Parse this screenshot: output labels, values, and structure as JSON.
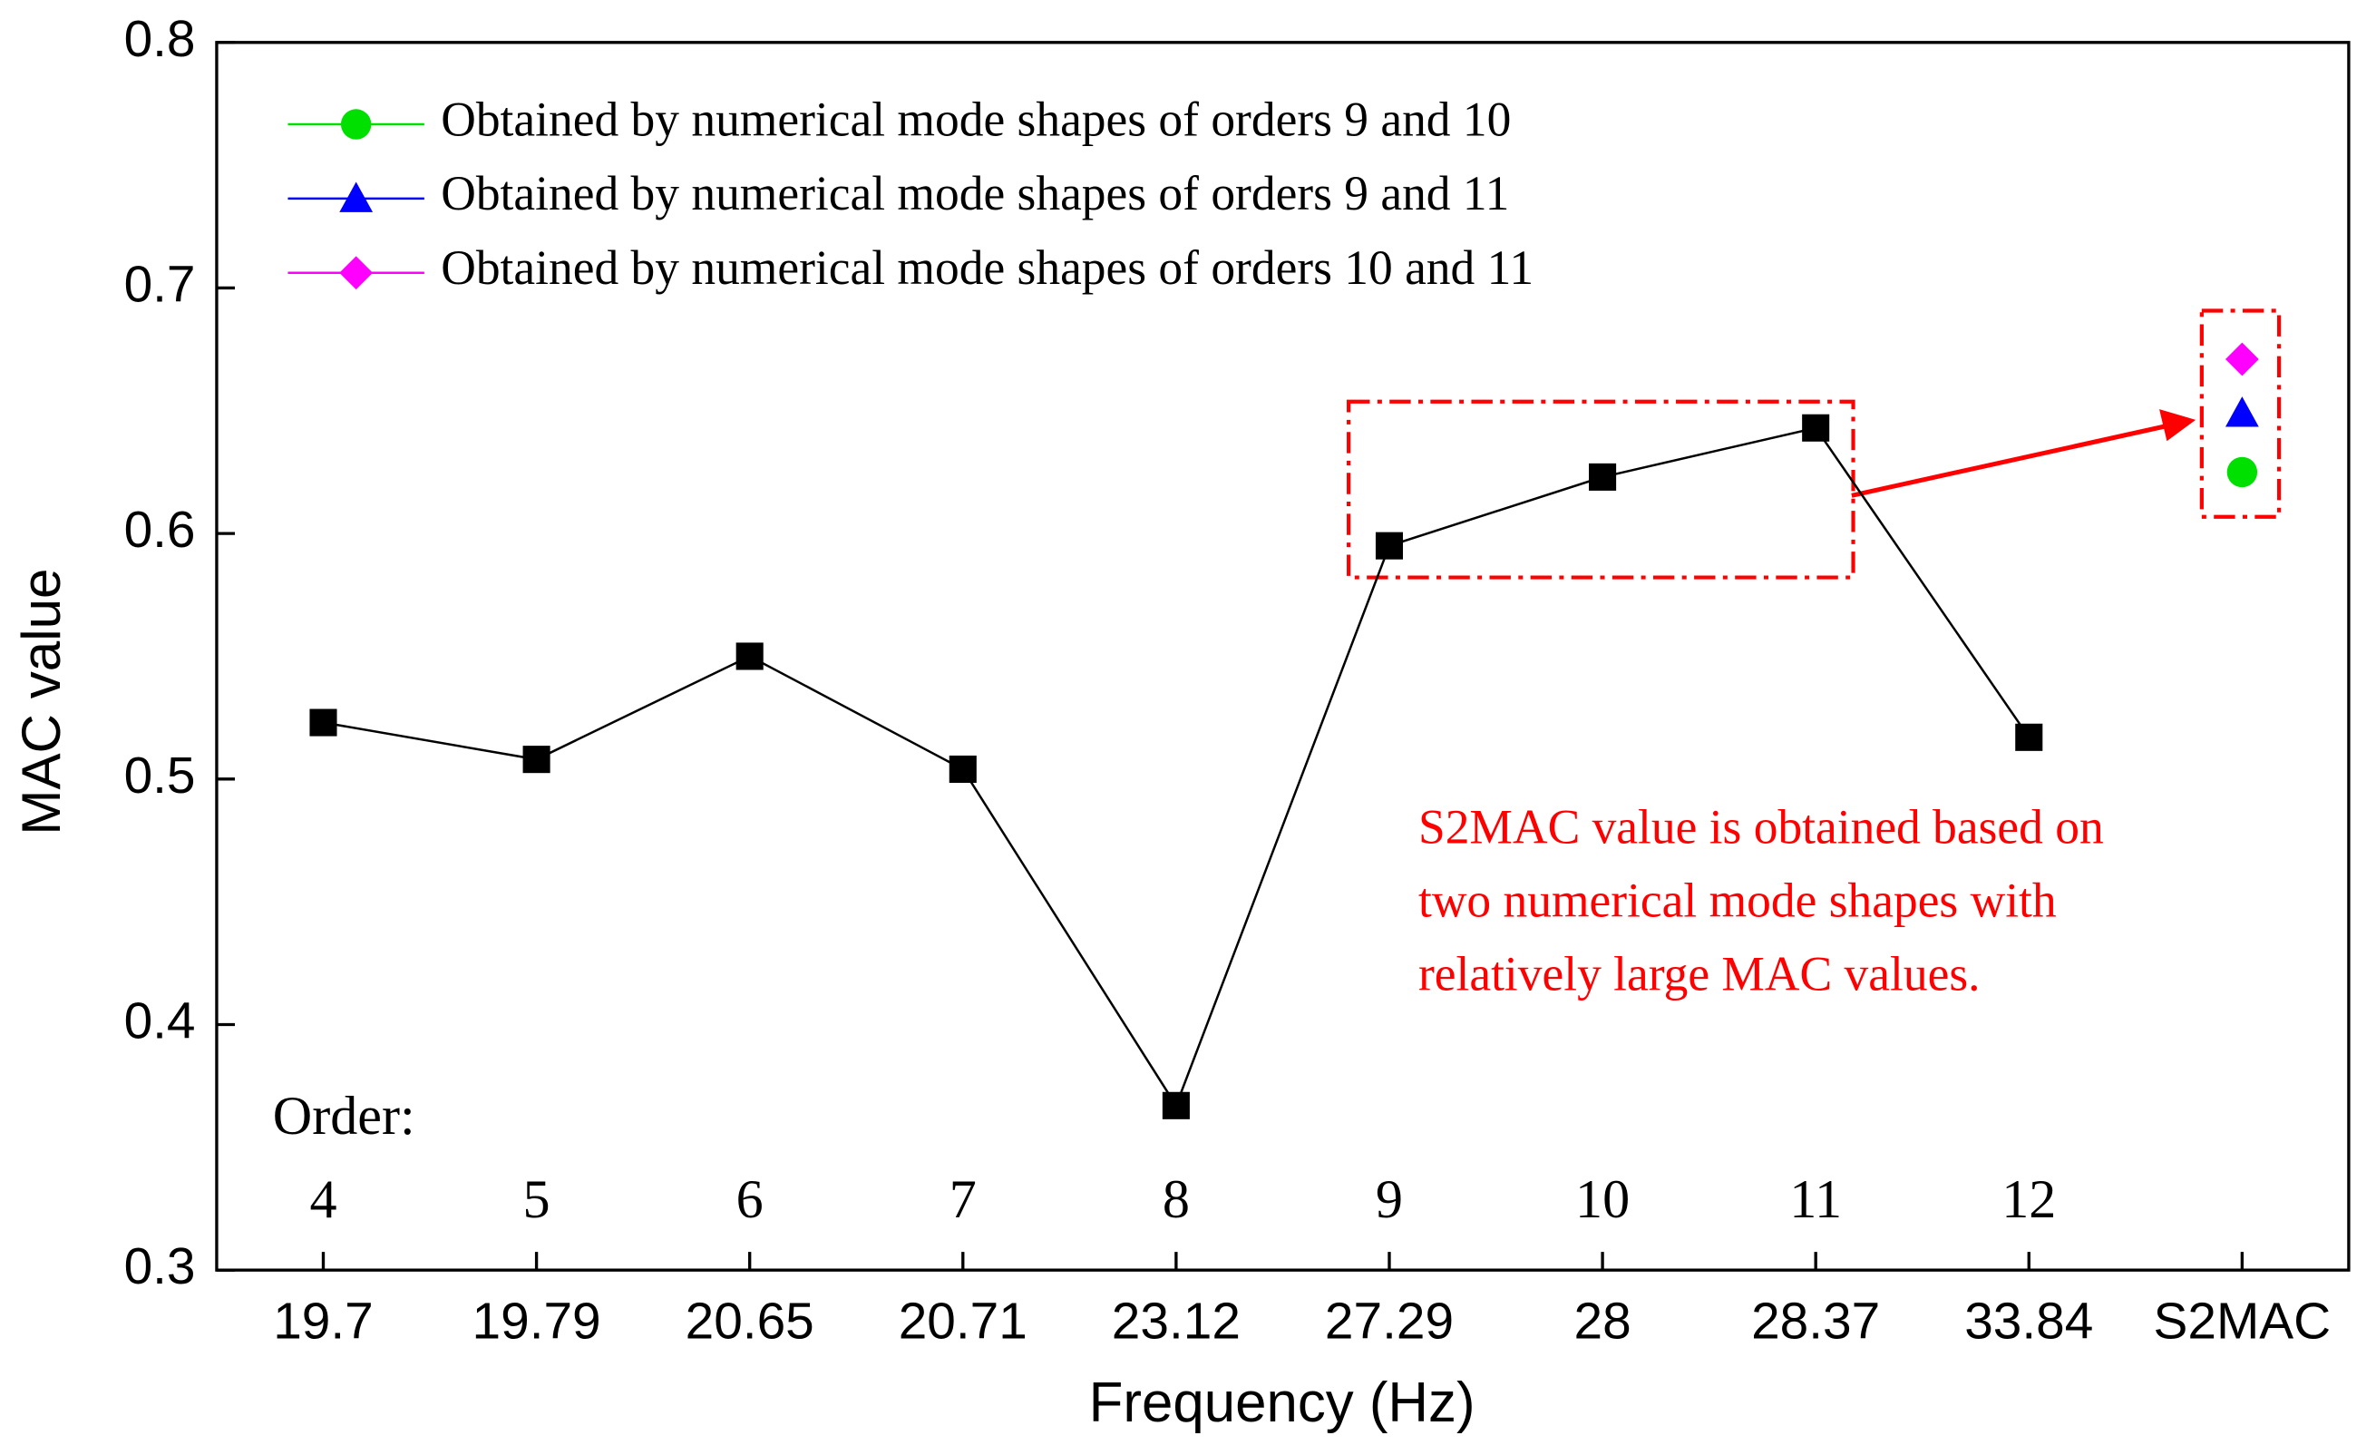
{
  "chart_data": {
    "type": "line",
    "x_label": "Frequency (Hz)",
    "y_label": "MAC value",
    "categories": [
      "19.7",
      "19.79",
      "20.65",
      "20.71",
      "23.12",
      "27.29",
      "28",
      "28.37",
      "33.84",
      "S2MAC"
    ],
    "order_label": "Order:",
    "orders": [
      4,
      5,
      6,
      7,
      8,
      9,
      10,
      11,
      12,
      null
    ],
    "ylim": [
      0.3,
      0.8
    ],
    "yticks": [
      0.3,
      0.4,
      0.5,
      0.6,
      0.7,
      0.8
    ],
    "series": [
      {
        "color": "#000000",
        "marker": "square",
        "values": [
          0.523,
          0.508,
          0.55,
          0.504,
          0.367,
          0.595,
          0.623,
          0.643,
          0.517,
          null
        ]
      },
      {
        "name": "Obtained by numerical mode shapes of orders 9 and 10",
        "color": "#00e000",
        "marker": "circle",
        "values": [
          null,
          null,
          null,
          null,
          null,
          null,
          null,
          null,
          null,
          0.625
        ]
      },
      {
        "name": "Obtained by numerical mode shapes of orders 9 and 11",
        "color": "#0000ff",
        "marker": "triangle",
        "values": [
          null,
          null,
          null,
          null,
          null,
          null,
          null,
          null,
          null,
          0.649
        ]
      },
      {
        "name": "Obtained by numerical mode shapes of orders 10 and 11",
        "color": "#ff00ff",
        "marker": "diamond",
        "values": [
          null,
          null,
          null,
          null,
          null,
          null,
          null,
          null,
          null,
          0.671
        ]
      }
    ],
    "annotation": [
      "S2MAC value is obtained based on",
      "two numerical mode shapes with",
      "relatively large MAC values."
    ]
  }
}
